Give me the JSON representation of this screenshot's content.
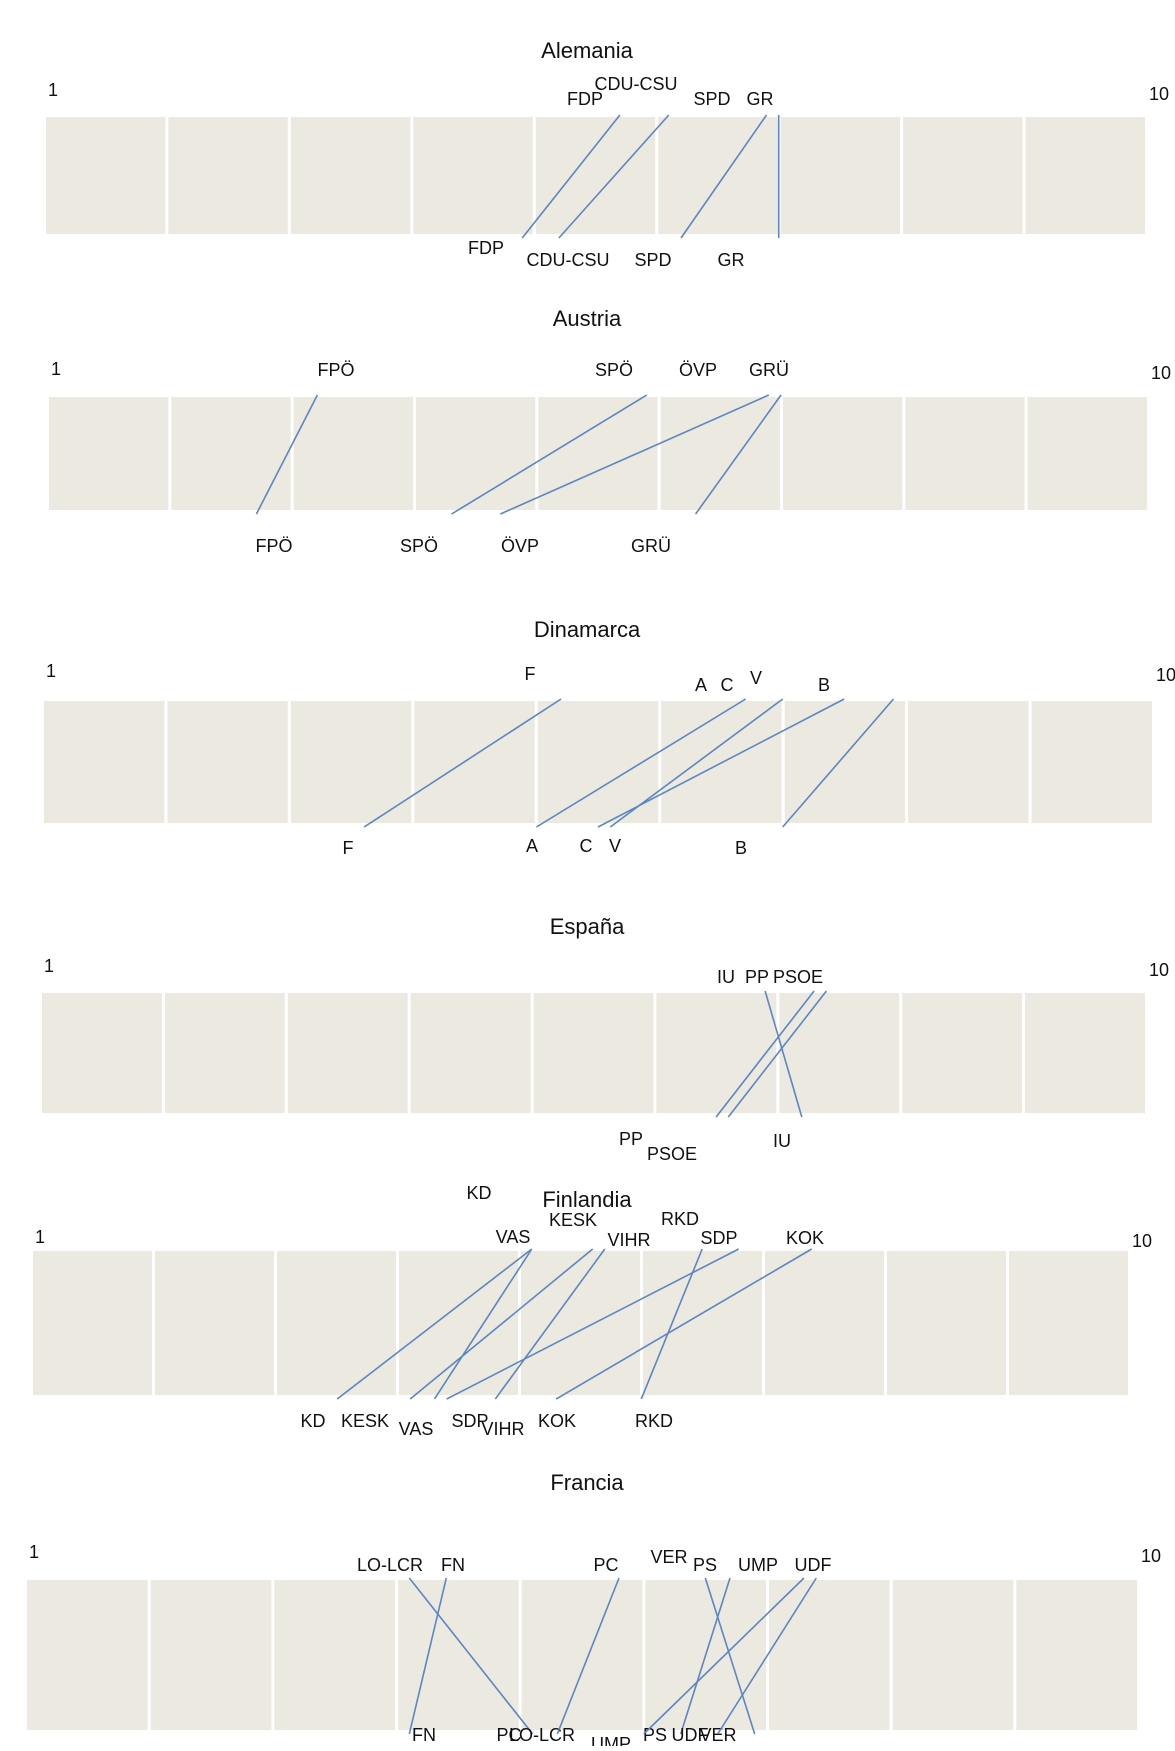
{
  "chart_data": [
    {
      "type": "diagram",
      "title": "Alemania",
      "scale": [
        "1",
        "10"
      ],
      "parties": [
        {
          "top": "FDP",
          "bottom": "FDP",
          "top_value": 5.7,
          "bottom_value": 4.9
        },
        {
          "top": "CDU-CSU",
          "bottom": "CDU-CSU",
          "top_value": 6.1,
          "bottom_value": 5.2
        },
        {
          "top": "SPD",
          "bottom": "SPD",
          "top_value": 6.9,
          "bottom_value": 6.2
        },
        {
          "top": "GR",
          "bottom": "GR",
          "top_value": 7.0,
          "bottom_value": 7.0
        }
      ]
    },
    {
      "type": "diagram",
      "title": "Austria",
      "scale": [
        "1",
        "10"
      ],
      "parties": [
        {
          "top": "FPÖ",
          "bottom": "FPÖ",
          "top_value": 3.2,
          "bottom_value": 2.7
        },
        {
          "top": "SPÖ",
          "bottom": "SPÖ",
          "top_value": 5.9,
          "bottom_value": 4.3
        },
        {
          "top": "ÖVP",
          "bottom": "ÖVP",
          "top_value": 6.9,
          "bottom_value": 4.7
        },
        {
          "top": "GRÜ",
          "bottom": "GRÜ",
          "top_value": 7.0,
          "bottom_value": 6.3
        }
      ]
    },
    {
      "type": "diagram",
      "title": "Dinamarca",
      "scale": [
        "1",
        "10"
      ],
      "parties": [
        {
          "top": "F",
          "bottom": "F",
          "top_value": 5.2,
          "bottom_value": 3.6
        },
        {
          "top": "A",
          "bottom": "A",
          "top_value": 6.7,
          "bottom_value": 5.0
        },
        {
          "top": "C",
          "bottom": "C",
          "top_value": 7.0,
          "bottom_value": 5.6
        },
        {
          "top": "V",
          "bottom": "V",
          "top_value": 7.5,
          "bottom_value": 5.5
        },
        {
          "top": "B",
          "bottom": "B",
          "top_value": 7.9,
          "bottom_value": 7.0
        }
      ]
    },
    {
      "type": "diagram",
      "title": "España",
      "scale": [
        "1",
        "10"
      ],
      "parties": [
        {
          "top": "IU",
          "bottom": "IU",
          "top_value": 6.9,
          "bottom_value": 7.2
        },
        {
          "top": "PP",
          "bottom": "PP",
          "top_value": 7.3,
          "bottom_value": 6.5
        },
        {
          "top": "PSOE",
          "bottom": "PSOE",
          "top_value": 7.4,
          "bottom_value": 6.6
        }
      ]
    },
    {
      "type": "diagram",
      "title": "Finlandia",
      "scale": [
        "1",
        "10"
      ],
      "parties": [
        {
          "top": "KD",
          "bottom": "KD",
          "top_value": 5.1,
          "bottom_value": 3.5
        },
        {
          "top": "VAS",
          "bottom": "VAS",
          "top_value": 5.1,
          "bottom_value": 4.3
        },
        {
          "top": "KESK",
          "bottom": "KESK",
          "top_value": 5.6,
          "bottom_value": 4.1
        },
        {
          "top": "VIHR",
          "bottom": "VIHR",
          "top_value": 5.7,
          "bottom_value": 4.8
        },
        {
          "top": "RKD",
          "bottom": "RKD",
          "top_value": 6.5,
          "bottom_value": 6.0
        },
        {
          "top": "SDP",
          "bottom": "SDP",
          "top_value": 6.8,
          "bottom_value": 4.4
        },
        {
          "top": "KOK",
          "bottom": "KOK",
          "top_value": 7.4,
          "bottom_value": 5.3
        }
      ]
    },
    {
      "type": "diagram",
      "title": "Francia",
      "scale": [
        "1",
        "10"
      ],
      "parties": [
        {
          "top": "LO-LCR",
          "bottom": "LO-LCR",
          "top_value": 4.1,
          "bottom_value": 5.1
        },
        {
          "top": "FN",
          "bottom": "FN",
          "top_value": 4.4,
          "bottom_value": 4.1
        },
        {
          "top": "PC",
          "bottom": "PC",
          "top_value": 5.8,
          "bottom_value": 5.3
        },
        {
          "top": "VER",
          "bottom": "VER",
          "top_value": 6.5,
          "bottom_value": 6.9
        },
        {
          "top": "PS",
          "bottom": "PS",
          "top_value": 6.7,
          "bottom_value": 6.3
        },
        {
          "top": "UMP",
          "bottom": "UMP",
          "top_value": 7.3,
          "bottom_value": 6.0
        },
        {
          "top": "UDF",
          "bottom": "UDF",
          "top_value": 7.4,
          "bottom_value": 6.6
        }
      ]
    }
  ],
  "colors": {
    "cell": "#ece9e0",
    "line": "#5b86c4"
  }
}
